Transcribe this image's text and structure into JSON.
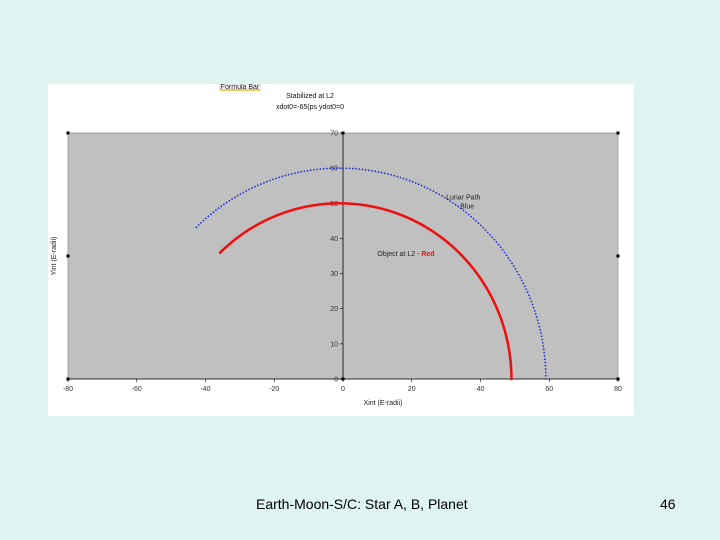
{
  "chart_data": {
    "type": "scatter",
    "chip_label": "Formula Bar",
    "title": "Stabilized at L2",
    "subtitle": "xdot0=-65(ps ydot0=0",
    "xlabel": "Xint (E-radii)",
    "ylabel": "Yint (E-radii)",
    "xlim": [
      -80,
      80
    ],
    "ylim": [
      0,
      70
    ],
    "x_ticks": [
      -80,
      -60,
      -40,
      -20,
      0,
      20,
      40,
      60,
      80
    ],
    "x_tick_labels": [
      "-80",
      "-60",
      "-40",
      "-20",
      "0",
      "20",
      "40",
      "60",
      "80"
    ],
    "y_ticks": [
      0,
      10,
      20,
      30,
      40,
      50,
      60,
      70
    ],
    "y_tick_labels": [
      "0",
      "10",
      "20",
      "30",
      "40",
      "50",
      "60",
      "70"
    ],
    "grid": false,
    "background": "#c0c0c0",
    "series": [
      {
        "name": "Lunar Path",
        "color": "#2233cc",
        "center": [
          -1,
          0
        ],
        "radius": 60,
        "start_angle_deg": 0,
        "end_angle_deg": 134,
        "points": 150
      },
      {
        "name": "Object at L2",
        "color": "#ee1111",
        "center": [
          -1,
          0
        ],
        "radius": 50,
        "start_angle_deg": 0,
        "end_angle_deg": 134,
        "points": 320
      }
    ],
    "annotations": [
      {
        "text": "Lunar Path",
        "line2": "Blue",
        "line2_color": "#2233cc",
        "x": 30,
        "y": 50
      },
      {
        "text": "Object at L2 - ",
        "suffix": "Red",
        "suffix_color": "#ee1111",
        "x": 10,
        "y": 35
      }
    ]
  },
  "footer": {
    "caption": "Earth-Moon-S/C: Star A, B, Planet",
    "page_number": "46"
  }
}
